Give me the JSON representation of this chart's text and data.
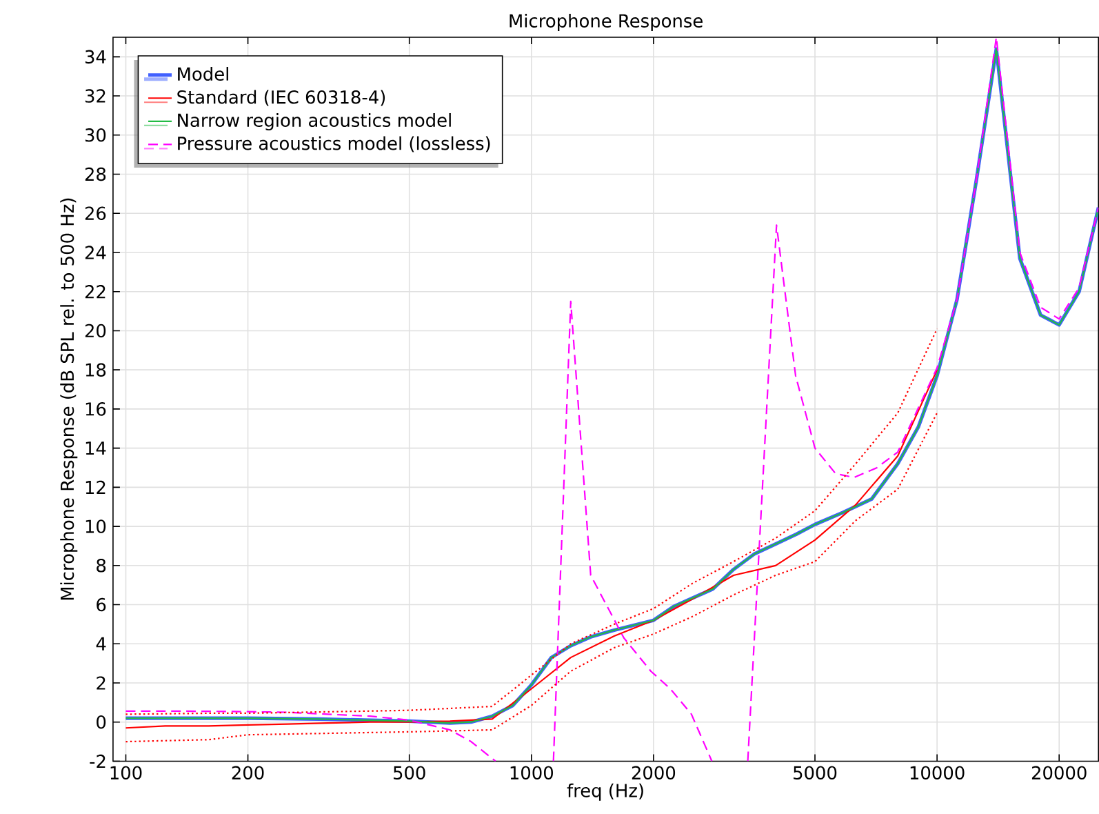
{
  "chart_data": {
    "type": "line",
    "title": "Microphone Response",
    "xlabel": "freq (Hz)",
    "ylabel": "Microphone Response (dB SPL rel. to 500 Hz)",
    "log": "x",
    "grid": true,
    "legend": "top left",
    "xlim": [
      93,
      25000
    ],
    "xticks": [
      100,
      200,
      500,
      1000,
      2000,
      5000,
      10000,
      20000
    ],
    "ylim": [
      -2,
      35
    ],
    "yticks": [
      -2,
      0,
      2,
      4,
      6,
      8,
      10,
      12,
      14,
      16,
      18,
      20,
      22,
      24,
      26,
      28,
      30,
      32,
      34
    ],
    "series": [
      {
        "name": "Model",
        "color": "#4060ff",
        "line_style": "solid",
        "x": [
          100,
          200,
          300,
          500,
          630,
          710,
          800,
          900,
          1000,
          1120,
          1250,
          1400,
          1600,
          2000,
          2240,
          2800,
          3150,
          3550,
          4000,
          4500,
          5000,
          5850,
          6900,
          8000,
          9000,
          10000,
          11200,
          12500,
          14000,
          16000,
          18000,
          20000,
          22400,
          25000
        ],
        "values": [
          0.2,
          0.2,
          0.15,
          0.05,
          -0.05,
          0.0,
          0.3,
          0.85,
          1.9,
          3.3,
          3.9,
          4.35,
          4.7,
          5.2,
          5.9,
          6.8,
          7.8,
          8.6,
          9.1,
          9.6,
          10.1,
          10.7,
          11.4,
          13.2,
          15.1,
          17.7,
          21.6,
          27.7,
          34.4,
          23.7,
          20.8,
          20.3,
          22.0,
          26.3
        ]
      },
      {
        "name": "Standard (IEC 60318-4)",
        "color": "#ff0000",
        "line_style": "solid",
        "x": [
          100,
          125,
          160,
          200,
          250,
          315,
          400,
          500,
          630,
          800,
          1000,
          1250,
          1600,
          2000,
          2500,
          3150,
          4000,
          5000,
          6300,
          8000,
          10000
        ],
        "values": [
          -0.3,
          -0.2,
          -0.2,
          -0.15,
          -0.1,
          -0.05,
          0.0,
          0.0,
          0.05,
          0.15,
          1.7,
          3.3,
          4.4,
          5.2,
          6.3,
          7.5,
          8.0,
          9.3,
          11.1,
          13.6,
          18.0
        ]
      },
      {
        "name": "Narrow region acoustics model",
        "color": "#22bb44",
        "line_style": "solid",
        "x": [
          100,
          200,
          300,
          500,
          630,
          710,
          800,
          900,
          1000,
          1120,
          1250,
          1400,
          1600,
          2000,
          2240,
          2800,
          3150,
          3550,
          4000,
          4500,
          5000,
          5850,
          6900,
          8000,
          9000,
          10000,
          11200,
          12500,
          14000,
          16000,
          18000,
          20000,
          22400,
          25000
        ],
        "values": [
          0.2,
          0.2,
          0.15,
          0.05,
          -0.05,
          0.0,
          0.3,
          0.85,
          1.9,
          3.3,
          3.9,
          4.35,
          4.7,
          5.2,
          5.9,
          6.8,
          7.8,
          8.6,
          9.1,
          9.6,
          10.1,
          10.7,
          11.4,
          13.2,
          15.1,
          17.7,
          21.6,
          27.7,
          34.4,
          23.7,
          20.8,
          20.3,
          22.0,
          26.3
        ]
      },
      {
        "name": "Pressure acoustics model (lossless)",
        "color": "#ff00ff",
        "line_style": "dashed",
        "x": [
          100,
          125,
          160,
          200,
          250,
          315,
          400,
          500,
          630,
          710,
          816,
          1000,
          1133,
          1250,
          1400,
          1690,
          1970,
          2200,
          2480,
          2785,
          3000,
          3415,
          4020,
          4480,
          5000,
          5620,
          6240,
          7110,
          8000,
          10000,
          11200,
          12500,
          14000,
          16000,
          18000,
          20000,
          22400,
          25000
        ],
        "values": [
          0.56,
          0.56,
          0.55,
          0.53,
          0.5,
          0.4,
          0.3,
          0.1,
          -0.4,
          -1.0,
          -2,
          null,
          -2,
          21.5,
          7.5,
          4.3,
          2.6,
          1.7,
          0.4,
          -2,
          null,
          -2,
          25.4,
          17.7,
          14.0,
          12.7,
          12.5,
          13.0,
          13.8,
          18.1,
          21.6,
          27.7,
          35,
          24.0,
          21.2,
          20.6,
          22.2,
          26.3
        ]
      },
      {
        "color": "#ff0000",
        "line_style": "dotted",
        "x": [
          100,
          160,
          200,
          500,
          800,
          1000,
          1250,
          1600,
          2000,
          2500,
          3150,
          4000,
          5000,
          6300,
          8000,
          10000
        ],
        "values": [
          0.4,
          0.45,
          0.45,
          0.6,
          0.8,
          2.4,
          4.0,
          5.0,
          5.8,
          7.1,
          8.2,
          9.4,
          10.8,
          13.2,
          15.8,
          20.1
        ]
      },
      {
        "color": "#ff0000",
        "line_style": "dotted",
        "x": [
          100,
          160,
          200,
          500,
          800,
          1000,
          1250,
          1600,
          2000,
          2500,
          3150,
          4000,
          5000,
          6300,
          8000,
          10000
        ],
        "values": [
          -1.0,
          -0.9,
          -0.65,
          -0.5,
          -0.4,
          0.85,
          2.6,
          3.8,
          4.5,
          5.4,
          6.5,
          7.5,
          8.2,
          10.3,
          11.9,
          15.8
        ]
      }
    ]
  }
}
